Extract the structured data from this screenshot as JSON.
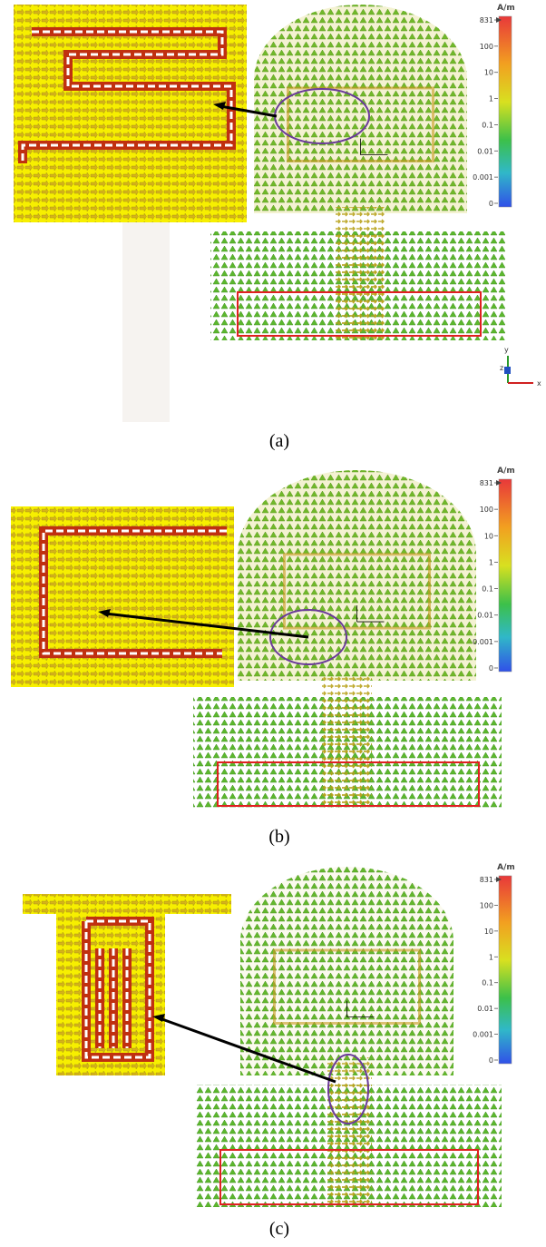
{
  "panels": [
    {
      "caption": "(a)",
      "colorbar": {
        "unit": "A/m",
        "ticks": [
          "831",
          "100",
          "10",
          "1",
          "0.1",
          "0.01",
          "0.001",
          "0"
        ]
      },
      "axes": [
        "y",
        "z",
        "x"
      ]
    },
    {
      "caption": "(b)",
      "colorbar": {
        "unit": "A/m",
        "ticks": [
          "831",
          "100",
          "10",
          "1",
          "0.1",
          "0.01",
          "0.001",
          "0"
        ]
      }
    },
    {
      "caption": "(c)",
      "colorbar": {
        "unit": "A/m",
        "ticks": [
          "831",
          "100",
          "10",
          "1",
          "0.1",
          "0.01",
          "0.001",
          "0"
        ]
      }
    }
  ]
}
